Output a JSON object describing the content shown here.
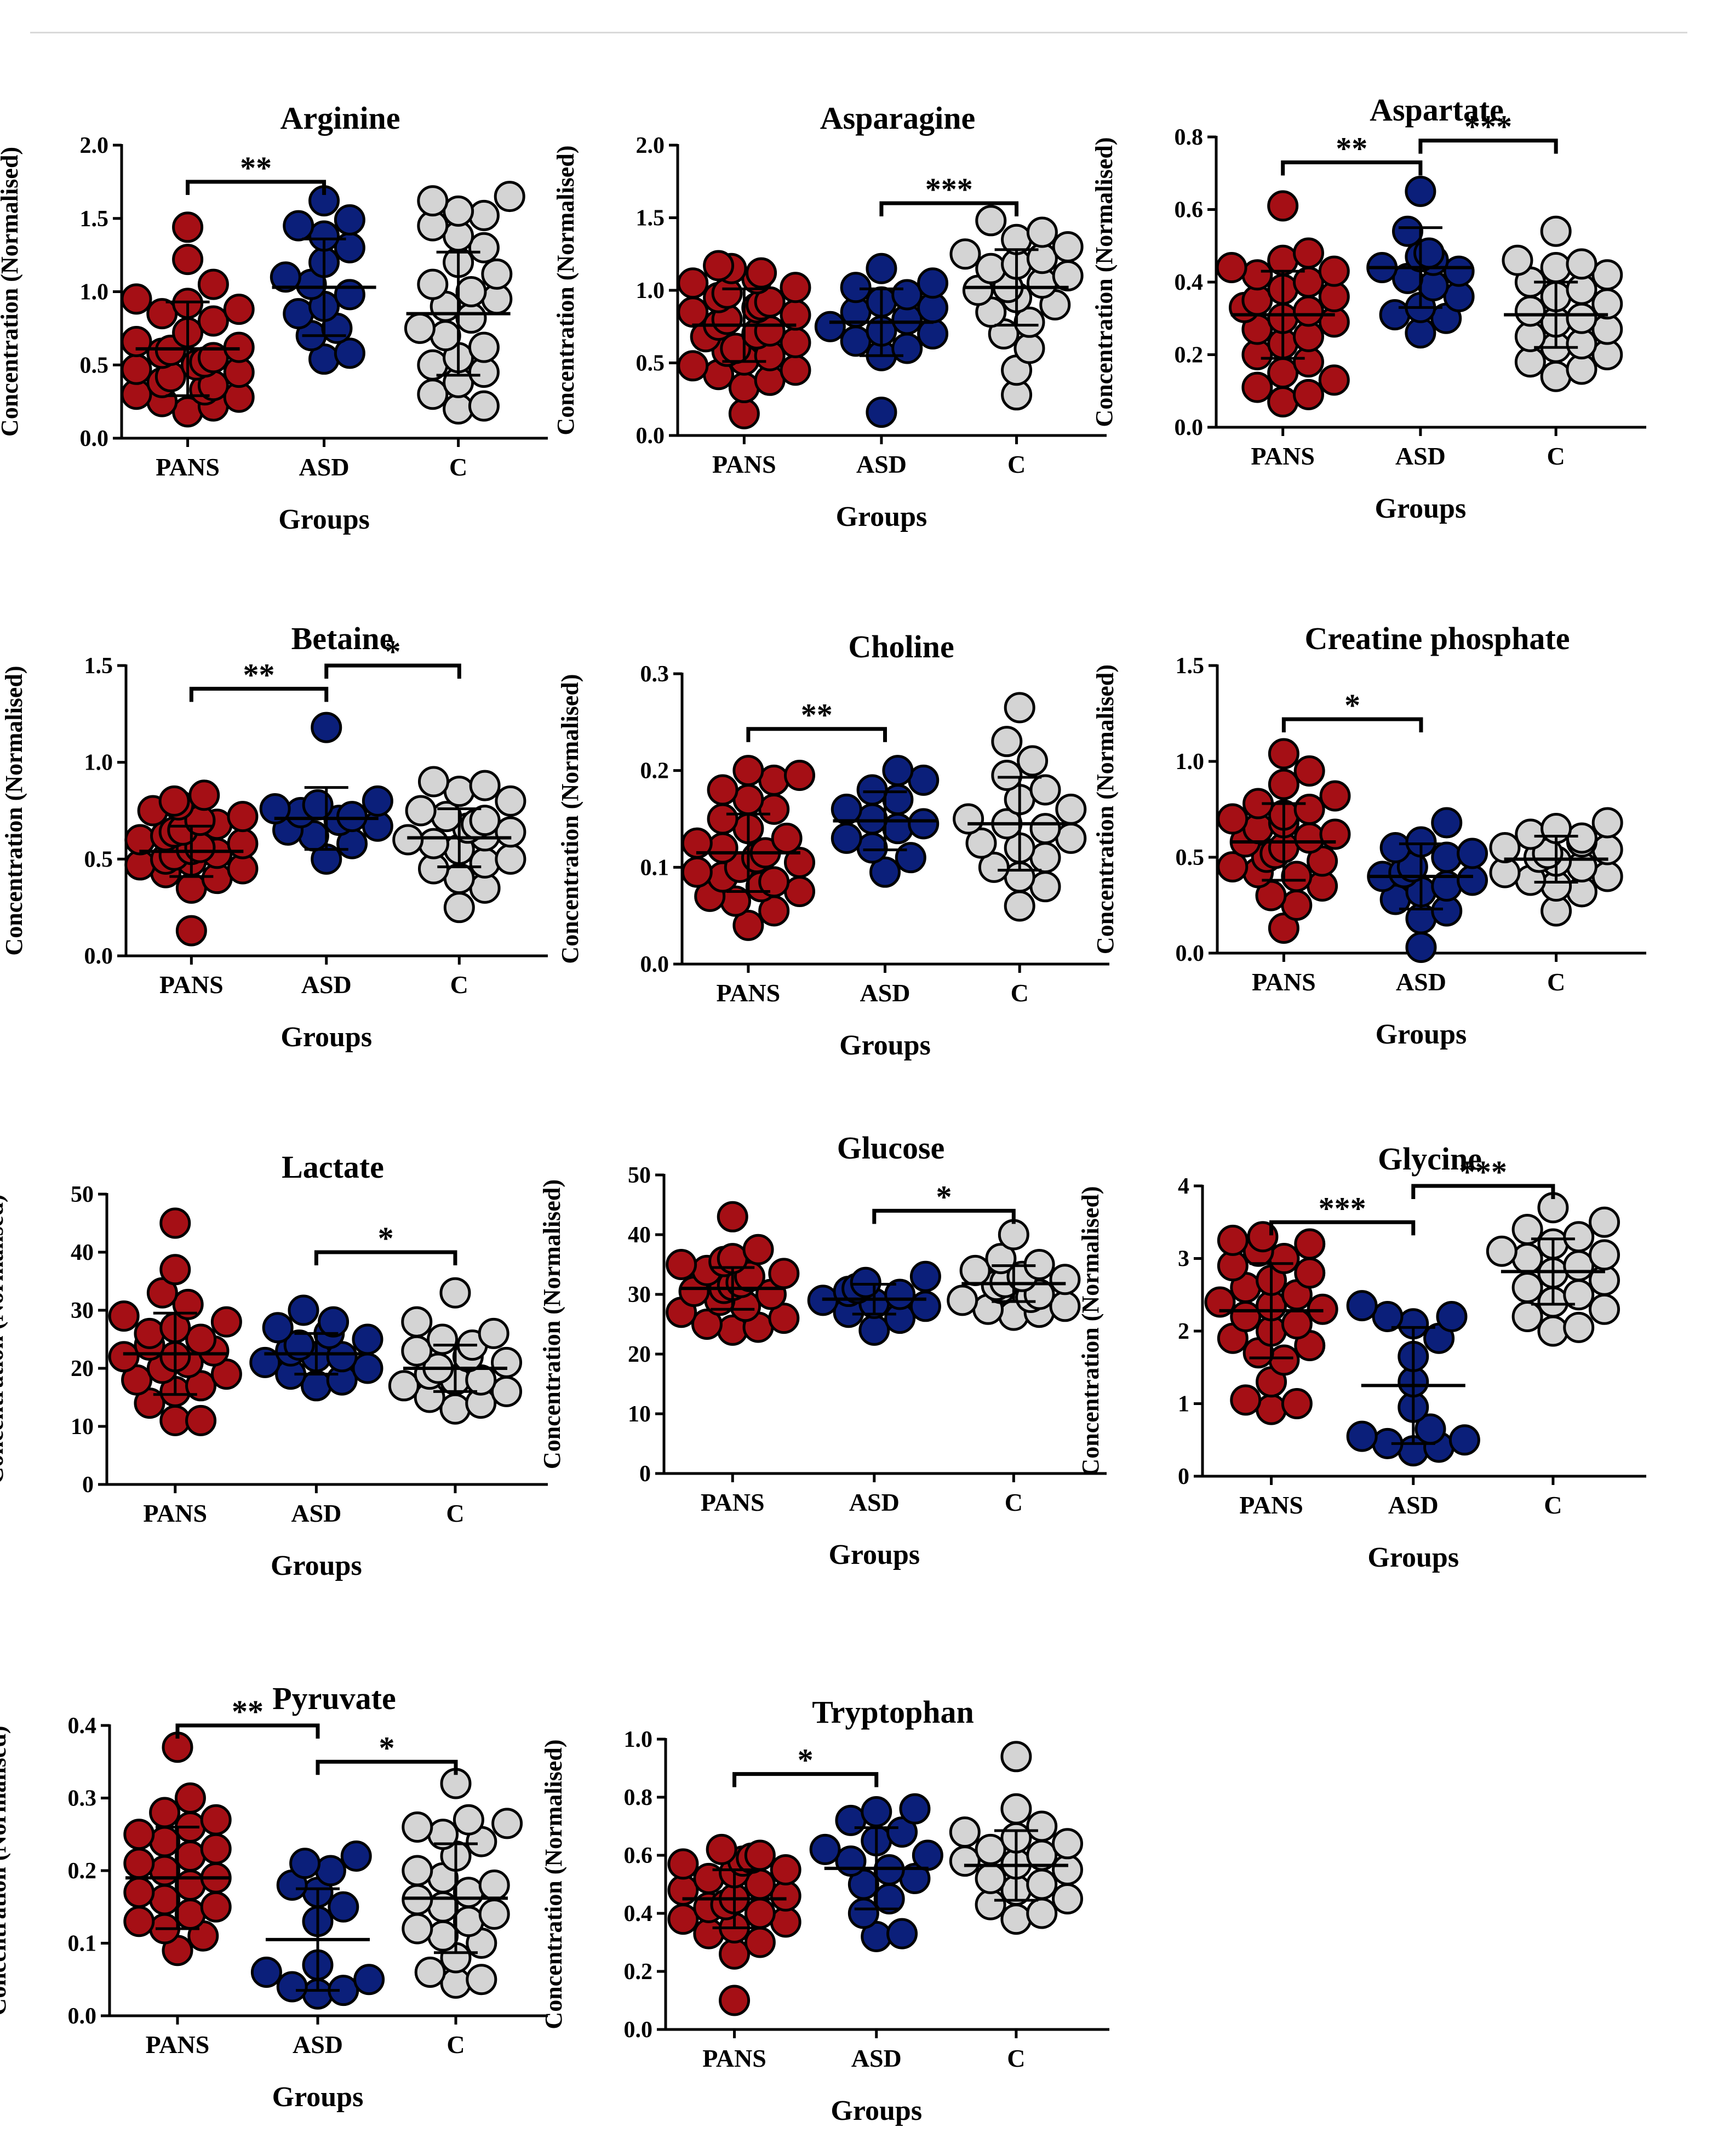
{
  "figure": {
    "groups": [
      "PANS",
      "ASD",
      "C"
    ],
    "xlabel": "Groups",
    "ylabel": "Concentration (Normalised)",
    "colors": {
      "PANS": "#a50f15",
      "ASD": "#0b1f7a",
      "C": "#d4d4d4"
    }
  },
  "chart_data": [
    {
      "type": "scatter",
      "title": "Arginine",
      "ylim": [
        0,
        2
      ],
      "yticks": [
        "0.0",
        "0.5",
        "1.0",
        "1.5",
        "2.0"
      ],
      "means": [
        0.61,
        1.03,
        0.85
      ],
      "sd": [
        0.32,
        0.33,
        0.42
      ],
      "series": [
        {
          "name": "PANS",
          "values": [
            0.18,
            0.22,
            0.25,
            0.28,
            0.3,
            0.33,
            0.36,
            0.38,
            0.42,
            0.45,
            0.47,
            0.5,
            0.52,
            0.55,
            0.58,
            0.6,
            0.62,
            0.66,
            0.72,
            0.8,
            0.85,
            0.88,
            0.92,
            0.95,
            1.05,
            1.22,
            1.44
          ]
        },
        {
          "name": "ASD",
          "values": [
            0.54,
            0.58,
            0.7,
            0.75,
            0.85,
            0.9,
            0.98,
            1.05,
            1.1,
            1.2,
            1.3,
            1.38,
            1.45,
            1.49,
            1.62
          ]
        },
        {
          "name": "C",
          "values": [
            0.2,
            0.22,
            0.3,
            0.38,
            0.45,
            0.5,
            0.55,
            0.62,
            0.7,
            0.75,
            0.82,
            0.9,
            0.95,
            1.0,
            1.05,
            1.12,
            1.2,
            1.3,
            1.38,
            1.45,
            1.52,
            1.55,
            1.62,
            1.65
          ]
        }
      ],
      "brackets": [
        {
          "from": 0,
          "to": 1,
          "label": "**",
          "level": 1.75
        }
      ]
    },
    {
      "type": "scatter",
      "title": "Asparagine",
      "ylim": [
        0,
        2
      ],
      "yticks": [
        "0.0",
        "0.5",
        "1.0",
        "1.5",
        "2.0"
      ],
      "means": [
        0.76,
        0.78,
        1.02
      ],
      "sd": [
        0.25,
        0.23,
        0.26
      ],
      "series": [
        {
          "name": "PANS",
          "values": [
            0.15,
            0.33,
            0.38,
            0.42,
            0.45,
            0.48,
            0.52,
            0.55,
            0.58,
            0.6,
            0.64,
            0.68,
            0.7,
            0.72,
            0.76,
            0.8,
            0.83,
            0.85,
            0.88,
            0.9,
            0.92,
            0.95,
            0.98,
            1.02,
            1.05,
            1.08,
            1.12,
            1.15,
            1.17
          ]
        },
        {
          "name": "ASD",
          "values": [
            0.16,
            0.55,
            0.6,
            0.65,
            0.7,
            0.72,
            0.75,
            0.8,
            0.85,
            0.88,
            0.92,
            0.97,
            1.02,
            1.05,
            1.15
          ]
        },
        {
          "name": "C",
          "values": [
            0.28,
            0.45,
            0.6,
            0.7,
            0.78,
            0.85,
            0.9,
            0.95,
            1.0,
            1.02,
            1.05,
            1.1,
            1.15,
            1.18,
            1.22,
            1.25,
            1.3,
            1.35,
            1.4,
            1.48
          ]
        }
      ],
      "brackets": [
        {
          "from": 1,
          "to": 2,
          "label": "***",
          "level": 1.6
        }
      ]
    },
    {
      "type": "scatter",
      "title": "Aspartate",
      "ylim": [
        0,
        0.8
      ],
      "yticks": [
        "0.0",
        "0.2",
        "0.4",
        "0.6",
        "0.8"
      ],
      "means": [
        0.31,
        0.44,
        0.31
      ],
      "sd": [
        0.12,
        0.11,
        0.09
      ],
      "series": [
        {
          "name": "PANS",
          "values": [
            0.07,
            0.09,
            0.11,
            0.13,
            0.15,
            0.18,
            0.2,
            0.23,
            0.25,
            0.27,
            0.29,
            0.3,
            0.32,
            0.33,
            0.35,
            0.36,
            0.38,
            0.4,
            0.42,
            0.43,
            0.44,
            0.46,
            0.48,
            0.61
          ]
        },
        {
          "name": "ASD",
          "values": [
            0.26,
            0.3,
            0.31,
            0.33,
            0.36,
            0.39,
            0.41,
            0.43,
            0.44,
            0.46,
            0.47,
            0.48,
            0.54,
            0.65
          ]
        },
        {
          "name": "C",
          "values": [
            0.14,
            0.16,
            0.18,
            0.2,
            0.22,
            0.23,
            0.25,
            0.27,
            0.29,
            0.3,
            0.32,
            0.34,
            0.36,
            0.38,
            0.4,
            0.42,
            0.44,
            0.45,
            0.46,
            0.54
          ]
        }
      ],
      "brackets": [
        {
          "from": 0,
          "to": 1,
          "label": "**",
          "level": 0.73
        },
        {
          "from": 1,
          "to": 2,
          "label": "***",
          "level": 0.79
        }
      ]
    },
    {
      "type": "scatter",
      "title": "Betaine",
      "ylim": [
        0,
        1.5
      ],
      "yticks": [
        "0.0",
        "0.5",
        "1.0",
        "1.5"
      ],
      "means": [
        0.54,
        0.71,
        0.61
      ],
      "sd": [
        0.13,
        0.16,
        0.15
      ],
      "series": [
        {
          "name": "PANS",
          "values": [
            0.13,
            0.35,
            0.4,
            0.43,
            0.45,
            0.47,
            0.49,
            0.5,
            0.52,
            0.53,
            0.55,
            0.56,
            0.58,
            0.6,
            0.62,
            0.64,
            0.65,
            0.68,
            0.7,
            0.72,
            0.75,
            0.78,
            0.8,
            0.83
          ]
        },
        {
          "name": "ASD",
          "values": [
            0.5,
            0.58,
            0.62,
            0.65,
            0.67,
            0.7,
            0.72,
            0.74,
            0.76,
            0.78,
            0.8,
            1.18
          ]
        },
        {
          "name": "C",
          "values": [
            0.25,
            0.35,
            0.4,
            0.45,
            0.48,
            0.5,
            0.55,
            0.58,
            0.6,
            0.62,
            0.64,
            0.66,
            0.68,
            0.7,
            0.72,
            0.75,
            0.8,
            0.85,
            0.88,
            0.9
          ]
        }
      ],
      "brackets": [
        {
          "from": 0,
          "to": 1,
          "label": "**",
          "level": 1.38
        },
        {
          "from": 1,
          "to": 2,
          "label": "*",
          "level": 1.5
        }
      ]
    },
    {
      "type": "scatter",
      "title": "Choline",
      "ylim": [
        0,
        0.3
      ],
      "yticks": [
        "0.0",
        "0.1",
        "0.2",
        "0.3"
      ],
      "means": [
        0.115,
        0.148,
        0.145
      ],
      "sd": [
        0.04,
        0.03,
        0.048
      ],
      "series": [
        {
          "name": "PANS",
          "values": [
            0.04,
            0.055,
            0.065,
            0.07,
            0.075,
            0.08,
            0.085,
            0.09,
            0.095,
            0.1,
            0.105,
            0.11,
            0.115,
            0.12,
            0.125,
            0.13,
            0.14,
            0.15,
            0.16,
            0.17,
            0.18,
            0.19,
            0.195,
            0.2
          ]
        },
        {
          "name": "ASD",
          "values": [
            0.095,
            0.11,
            0.12,
            0.13,
            0.14,
            0.145,
            0.15,
            0.16,
            0.17,
            0.18,
            0.19,
            0.2
          ]
        },
        {
          "name": "C",
          "values": [
            0.06,
            0.08,
            0.09,
            0.1,
            0.11,
            0.12,
            0.125,
            0.13,
            0.14,
            0.145,
            0.15,
            0.16,
            0.17,
            0.18,
            0.195,
            0.21,
            0.23,
            0.265
          ]
        }
      ],
      "brackets": [
        {
          "from": 0,
          "to": 1,
          "label": "**",
          "level": 0.243
        }
      ]
    },
    {
      "type": "scatter",
      "title": "Creatine phosphate",
      "ylim": [
        0,
        1.5
      ],
      "yticks": [
        "0.0",
        "0.5",
        "1.0",
        "1.5"
      ],
      "means": [
        0.58,
        0.4,
        0.49
      ],
      "sd": [
        0.2,
        0.17,
        0.12
      ],
      "series": [
        {
          "name": "PANS",
          "values": [
            0.13,
            0.25,
            0.3,
            0.35,
            0.4,
            0.42,
            0.45,
            0.48,
            0.5,
            0.52,
            0.55,
            0.58,
            0.6,
            0.62,
            0.65,
            0.68,
            0.7,
            0.72,
            0.75,
            0.78,
            0.82,
            0.88,
            0.95,
            1.04
          ]
        },
        {
          "name": "ASD",
          "values": [
            0.03,
            0.18,
            0.22,
            0.28,
            0.32,
            0.35,
            0.38,
            0.4,
            0.42,
            0.45,
            0.5,
            0.52,
            0.55,
            0.58,
            0.68
          ]
        },
        {
          "name": "C",
          "values": [
            0.22,
            0.32,
            0.35,
            0.38,
            0.4,
            0.42,
            0.45,
            0.48,
            0.5,
            0.52,
            0.54,
            0.55,
            0.58,
            0.6,
            0.62,
            0.65,
            0.68
          ]
        }
      ],
      "brackets": [
        {
          "from": 0,
          "to": 1,
          "label": "*",
          "level": 1.22
        }
      ]
    },
    {
      "type": "scatter",
      "title": "Lactate",
      "ylim": [
        0,
        50
      ],
      "yticks": [
        "0",
        "10",
        "20",
        "30",
        "40",
        "50"
      ],
      "means": [
        22.5,
        22.5,
        20
      ],
      "sd": [
        7,
        3.5,
        4
      ],
      "series": [
        {
          "name": "PANS",
          "values": [
            11,
            11,
            14,
            16,
            17,
            18,
            19,
            20,
            21,
            22,
            22,
            23,
            24,
            25,
            26,
            27,
            28,
            29,
            31,
            33,
            37,
            45
          ]
        },
        {
          "name": "ASD",
          "values": [
            17,
            18,
            19,
            20,
            21,
            22,
            22,
            23,
            24,
            25,
            26,
            27,
            28,
            30
          ]
        },
        {
          "name": "C",
          "values": [
            13,
            14,
            15,
            16,
            17,
            18,
            18,
            19,
            20,
            21,
            22,
            23,
            24,
            25,
            26,
            28,
            33
          ]
        }
      ],
      "brackets": [
        {
          "from": 1,
          "to": 2,
          "label": "*",
          "level": 40
        }
      ]
    },
    {
      "type": "scatter",
      "title": "Glucose",
      "ylim": [
        0,
        50
      ],
      "yticks": [
        "0",
        "10",
        "20",
        "30",
        "40",
        "50"
      ],
      "means": [
        31,
        29.2,
        31.8
      ],
      "sd": [
        3.5,
        2.5,
        3
      ],
      "series": [
        {
          "name": "PANS",
          "values": [
            24,
            24.5,
            25,
            26,
            27,
            28,
            29,
            30,
            30.5,
            31,
            31.5,
            32,
            33,
            33.5,
            34,
            35,
            35.5,
            36,
            37.5,
            43
          ]
        },
        {
          "name": "ASD",
          "values": [
            24,
            26,
            27,
            28,
            28.5,
            29,
            30,
            30.5,
            31,
            32,
            33
          ]
        },
        {
          "name": "C",
          "values": [
            26.5,
            27,
            27.5,
            28,
            29,
            29.5,
            30,
            31,
            31.5,
            32,
            32.5,
            33,
            34,
            35,
            36,
            40
          ]
        }
      ],
      "brackets": [
        {
          "from": 1,
          "to": 2,
          "label": "*",
          "level": 44
        }
      ]
    },
    {
      "type": "scatter",
      "title": "Glycine",
      "ylim": [
        0,
        4
      ],
      "yticks": [
        "0",
        "1",
        "2",
        "3",
        "4"
      ],
      "means": [
        2.28,
        1.25,
        2.82
      ],
      "sd": [
        0.65,
        0.8,
        0.45
      ],
      "series": [
        {
          "name": "PANS",
          "values": [
            0.92,
            1.0,
            1.05,
            1.3,
            1.6,
            1.7,
            1.8,
            1.9,
            2.0,
            2.1,
            2.2,
            2.3,
            2.35,
            2.4,
            2.5,
            2.6,
            2.7,
            2.8,
            2.9,
            3.0,
            3.1,
            3.2,
            3.25,
            3.3
          ]
        },
        {
          "name": "ASD",
          "values": [
            0.35,
            0.4,
            0.45,
            0.5,
            0.55,
            0.65,
            0.95,
            1.3,
            1.65,
            1.9,
            2.1,
            2.2,
            2.2,
            2.35
          ]
        },
        {
          "name": "C",
          "values": [
            2.0,
            2.05,
            2.2,
            2.3,
            2.4,
            2.5,
            2.6,
            2.7,
            2.8,
            2.9,
            3.0,
            3.05,
            3.1,
            3.2,
            3.3,
            3.4,
            3.5,
            3.7
          ]
        }
      ],
      "brackets": [
        {
          "from": 0,
          "to": 1,
          "label": "***",
          "level": 3.5
        },
        {
          "from": 1,
          "to": 2,
          "label": "***",
          "level": 4.0
        }
      ]
    },
    {
      "type": "scatter",
      "title": "Pyruvate",
      "ylim": [
        0,
        0.4
      ],
      "yticks": [
        "0.0",
        "0.1",
        "0.2",
        "0.3",
        "0.4"
      ],
      "means": [
        0.19,
        0.105,
        0.162
      ],
      "sd": [
        0.07,
        0.07,
        0.075
      ],
      "series": [
        {
          "name": "PANS",
          "values": [
            0.09,
            0.11,
            0.12,
            0.13,
            0.14,
            0.15,
            0.16,
            0.17,
            0.18,
            0.19,
            0.2,
            0.21,
            0.22,
            0.23,
            0.24,
            0.25,
            0.26,
            0.27,
            0.28,
            0.3,
            0.37
          ]
        },
        {
          "name": "ASD",
          "values": [
            0.03,
            0.035,
            0.04,
            0.05,
            0.06,
            0.07,
            0.13,
            0.15,
            0.17,
            0.18,
            0.2,
            0.21,
            0.22
          ]
        },
        {
          "name": "C",
          "values": [
            0.045,
            0.05,
            0.06,
            0.08,
            0.1,
            0.11,
            0.12,
            0.13,
            0.14,
            0.15,
            0.16,
            0.17,
            0.18,
            0.19,
            0.2,
            0.22,
            0.24,
            0.25,
            0.26,
            0.265,
            0.27,
            0.32
          ]
        }
      ],
      "brackets": [
        {
          "from": 0,
          "to": 1,
          "label": "**",
          "level": 0.4
        },
        {
          "from": 1,
          "to": 2,
          "label": "*",
          "level": 0.35
        }
      ]
    },
    {
      "type": "scatter",
      "title": "Tryptophan",
      "ylim": [
        0,
        1
      ],
      "yticks": [
        "0.0",
        "0.2",
        "0.4",
        "0.6",
        "0.8",
        "1.0"
      ],
      "means": [
        0.45,
        0.555,
        0.565
      ],
      "sd": [
        0.1,
        0.14,
        0.12
      ],
      "series": [
        {
          "name": "PANS",
          "values": [
            0.1,
            0.26,
            0.3,
            0.33,
            0.35,
            0.37,
            0.38,
            0.4,
            0.42,
            0.43,
            0.45,
            0.46,
            0.48,
            0.5,
            0.52,
            0.54,
            0.55,
            0.57,
            0.58,
            0.59,
            0.6,
            0.62
          ]
        },
        {
          "name": "ASD",
          "values": [
            0.32,
            0.33,
            0.4,
            0.45,
            0.5,
            0.52,
            0.55,
            0.58,
            0.6,
            0.62,
            0.65,
            0.68,
            0.72,
            0.75,
            0.76
          ]
        },
        {
          "name": "C",
          "values": [
            0.38,
            0.4,
            0.43,
            0.45,
            0.48,
            0.5,
            0.52,
            0.55,
            0.57,
            0.58,
            0.6,
            0.62,
            0.64,
            0.66,
            0.68,
            0.7,
            0.76,
            0.94
          ]
        }
      ],
      "brackets": [
        {
          "from": 0,
          "to": 1,
          "label": "*",
          "level": 0.88
        }
      ]
    }
  ]
}
